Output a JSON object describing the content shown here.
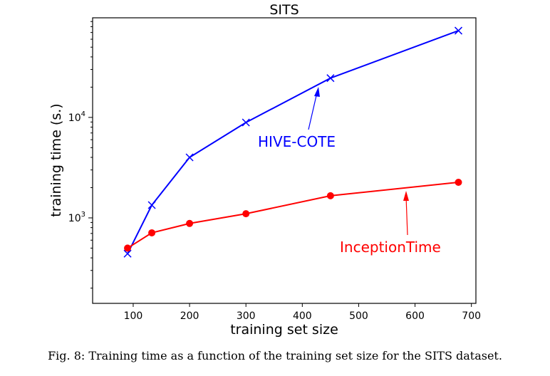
{
  "chart_data": {
    "type": "line",
    "title": "SITS",
    "xlabel": "training set size",
    "ylabel": "training time (s.)",
    "xlim": [
      28,
      708
    ],
    "ylim": [
      141,
      98000
    ],
    "yscale": "log",
    "grid": false,
    "xticks": [
      100,
      200,
      300,
      400,
      500,
      600,
      700
    ],
    "yticks": [
      {
        "value": 1000,
        "base": "10",
        "exp": "3"
      },
      {
        "value": 10000,
        "base": "10",
        "exp": "4"
      }
    ],
    "series": [
      {
        "name": "HIVE-COTE",
        "color": "#0000ff",
        "marker": "x",
        "x": [
          90,
          133,
          200,
          300,
          450,
          677
        ],
        "y": [
          440,
          1340,
          4000,
          8900,
          24600,
          73000
        ]
      },
      {
        "name": "InceptionTime",
        "color": "#ff0000",
        "marker": "o",
        "x": [
          90,
          133,
          200,
          300,
          450,
          677
        ],
        "y": [
          500,
          710,
          880,
          1100,
          1660,
          2260
        ]
      }
    ]
  },
  "caption": "Fig. 8: Training time as a function of the training set size for the SITS dataset."
}
